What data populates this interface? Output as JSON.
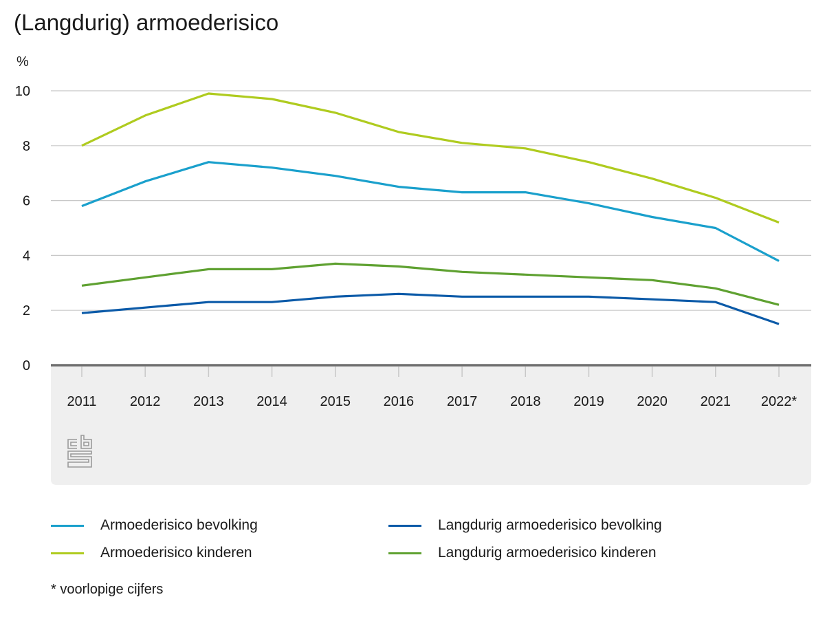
{
  "title": "(Langdurig) armoederisico",
  "footnote": "* voorlopige cijfers",
  "logo": "cbs-logo",
  "chart_data": {
    "type": "line",
    "title": "(Langdurig) armoederisico",
    "ylabel": "%",
    "xlabel": "",
    "ylim": [
      0,
      10
    ],
    "yticks": [
      0,
      2,
      4,
      6,
      8,
      10
    ],
    "grid": true,
    "legend_position": "bottom",
    "categories": [
      "2011",
      "2012",
      "2013",
      "2014",
      "2015",
      "2016",
      "2017",
      "2018",
      "2019",
      "2020",
      "2021",
      "2022*"
    ],
    "series": [
      {
        "name": "Armoederisico bevolking",
        "color": "#1aa0cc",
        "values": [
          5.8,
          6.7,
          7.4,
          7.2,
          6.9,
          6.5,
          6.3,
          6.3,
          5.9,
          5.4,
          5.0,
          3.8
        ]
      },
      {
        "name": "Langdurig armoederisico bevolking",
        "color": "#0b5aa8",
        "values": [
          1.9,
          2.1,
          2.3,
          2.3,
          2.5,
          2.6,
          2.5,
          2.5,
          2.5,
          2.4,
          2.3,
          1.5
        ]
      },
      {
        "name": "Armoederisico kinderen",
        "color": "#afcb1f",
        "values": [
          8.0,
          9.1,
          9.9,
          9.7,
          9.2,
          8.5,
          8.1,
          7.9,
          7.4,
          6.8,
          6.1,
          5.2
        ]
      },
      {
        "name": "Langdurig armoederisico kinderen",
        "color": "#5fa131",
        "values": [
          2.9,
          3.2,
          3.5,
          3.5,
          3.7,
          3.6,
          3.4,
          3.3,
          3.2,
          3.1,
          2.8,
          2.2
        ]
      }
    ],
    "annotations": [
      "* voorlopige cijfers"
    ]
  },
  "colors": {
    "grid": "#c8c8c8",
    "axis": "#6e6e6e",
    "band": "#efefef",
    "logo": "#9a9a9a"
  }
}
